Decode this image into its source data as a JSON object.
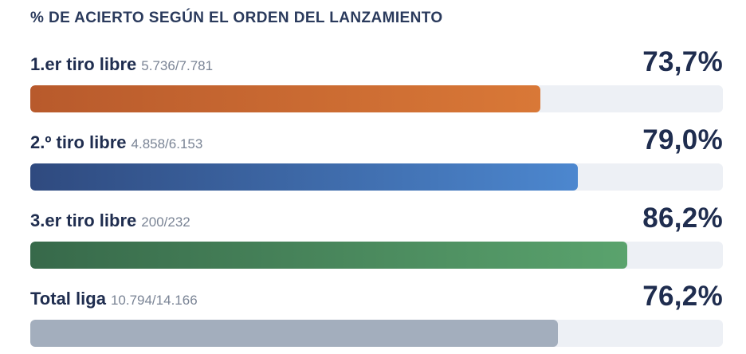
{
  "chart_data": {
    "type": "bar",
    "title": "% DE ACIERTO SEGÚN EL ORDEN DEL LANZAMIENTO",
    "categories": [
      "1.er tiro libre",
      "2.º tiro libre",
      "3.er tiro libre",
      "Total liga"
    ],
    "details": [
      "5.736/7.781",
      "4.858/6.153",
      "200/232",
      "10.794/14.166"
    ],
    "value_labels": [
      "73,7%",
      "79,0%",
      "86,2%",
      "76,2%"
    ],
    "values": [
      73.7,
      79.0,
      86.2,
      76.2
    ],
    "xlim": [
      0,
      100
    ],
    "colors": [
      [
        "#b85a2c",
        "#d97837"
      ],
      [
        "#2f4a7f",
        "#4c87cf"
      ],
      [
        "#37694a",
        "#5aa36d"
      ],
      [
        "#a3aebd",
        "#a3aebd"
      ]
    ]
  }
}
